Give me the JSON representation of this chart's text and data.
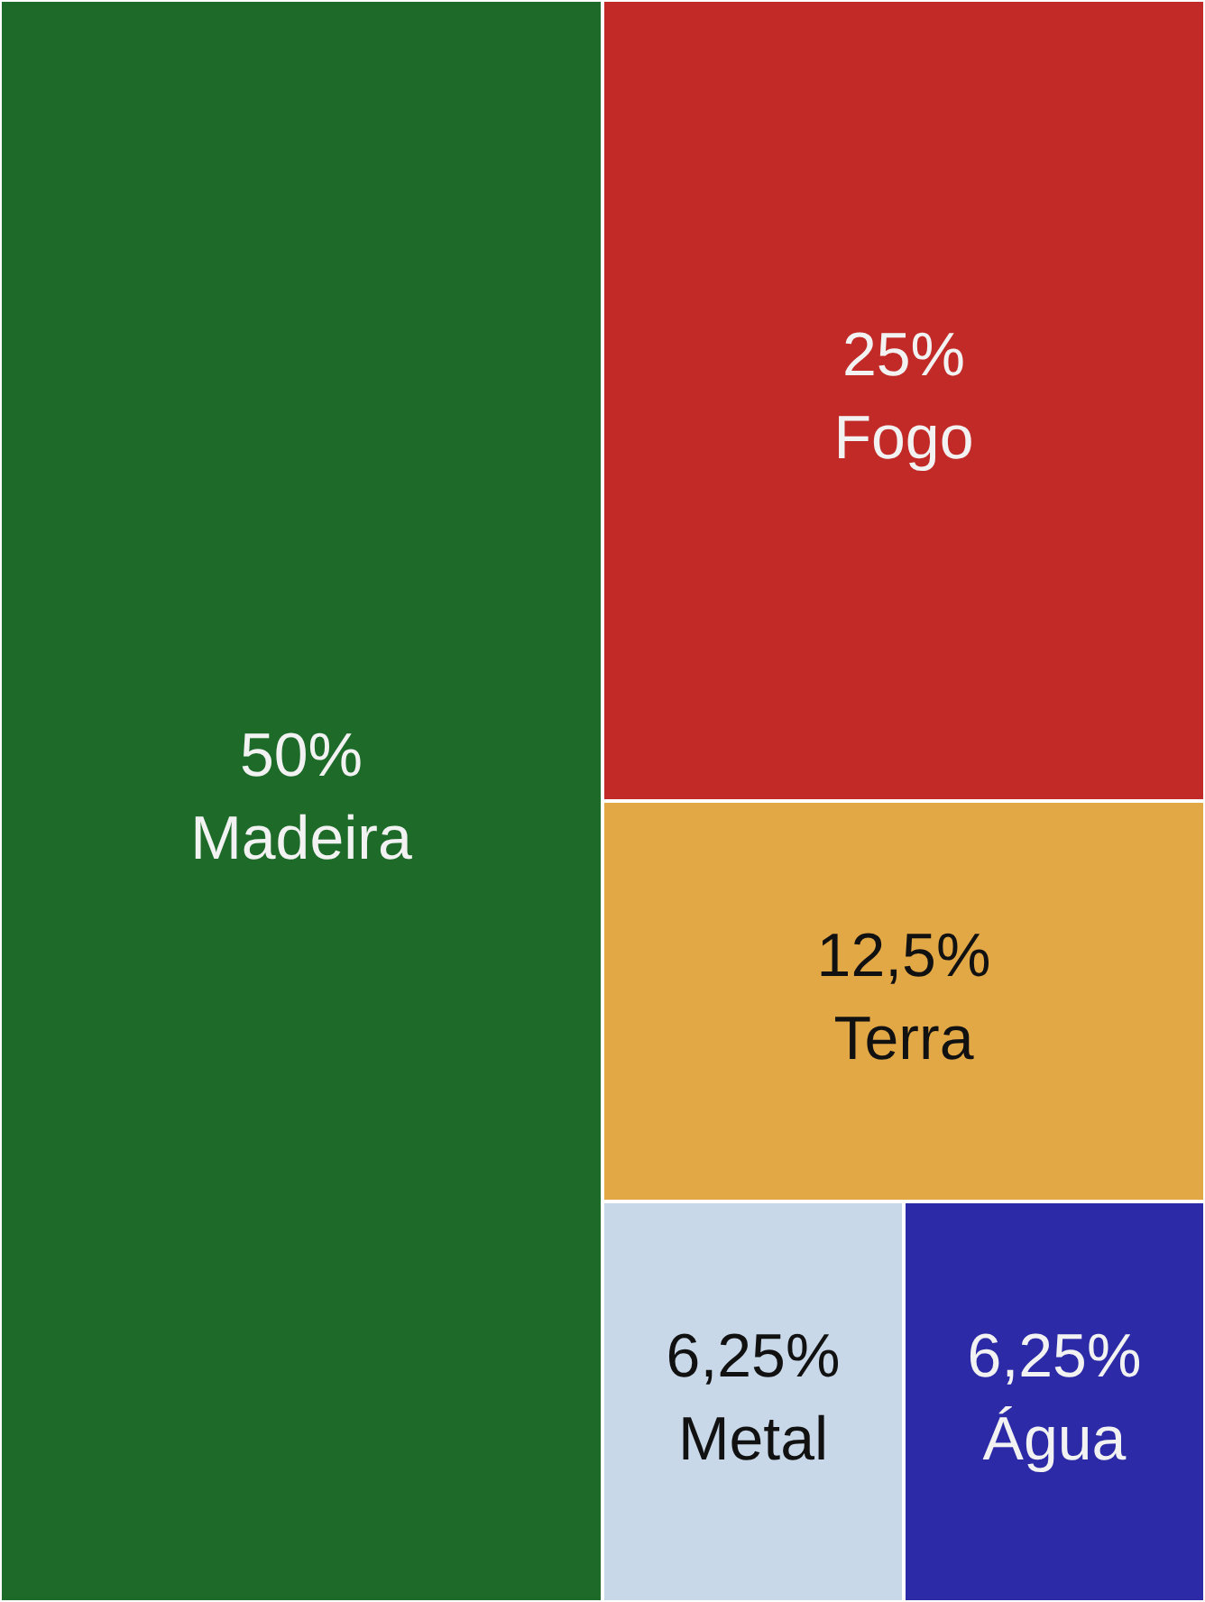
{
  "chart_data": {
    "type": "other",
    "categories": [
      "Madeira",
      "Fogo",
      "Terra",
      "Metal",
      "Água"
    ],
    "values": [
      50,
      25,
      12.5,
      6.25,
      6.25
    ],
    "value_labels": [
      "50%",
      "25%",
      "12,5%",
      "6,25%",
      "6,25%"
    ],
    "colors": [
      "#1d6a29",
      "#c22a28",
      "#e2a846",
      "#c9d8e8",
      "#2c2aa6"
    ]
  }
}
